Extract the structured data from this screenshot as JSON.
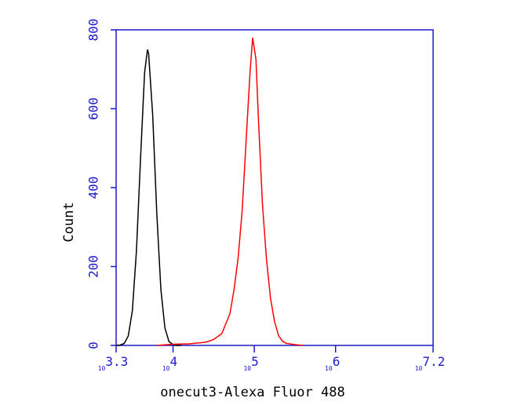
{
  "chart_data": {
    "type": "line",
    "xlabel": "onecut3-Alexa Fluor 488",
    "ylabel": "Count",
    "xscale": "log",
    "xlim": [
      1995.26,
      15848932
    ],
    "ylim": [
      0,
      800
    ],
    "yticks": [
      0,
      200,
      400,
      600,
      800
    ],
    "xticks": [
      {
        "value": 1995.26,
        "label": "10",
        "exponent": "3.3"
      },
      {
        "value": 10000,
        "label": "10",
        "exponent": "4"
      },
      {
        "value": 100000,
        "label": "10",
        "exponent": "5"
      },
      {
        "value": 1000000,
        "label": "10",
        "exponent": "6"
      },
      {
        "value": 15848932,
        "label": "10",
        "exponent": "7.2"
      }
    ],
    "axis_color": "#1a1acc",
    "series": [
      {
        "color": "#000000",
        "x": [
          1995,
          2239,
          2512,
          2818,
          3162,
          3548,
          3981,
          4467,
          4853,
          5012,
          5623,
          6310,
          7079,
          7943,
          8913,
          10000,
          11220,
          12589
        ],
        "values": [
          0,
          1,
          5,
          24,
          88,
          240,
          473,
          692,
          750,
          740,
          584,
          336,
          143,
          44,
          10,
          2,
          0,
          0
        ]
      },
      {
        "color": "#ff0000",
        "x": [
          6310,
          10000,
          15849,
          25119,
          31623,
          39811,
          50119,
          56234,
          63096,
          70795,
          79433,
          89125,
          95499,
          104713,
          112202,
          125893,
          141254,
          158489,
          177828,
          199526,
          223872,
          251189,
          316228,
          398107
        ],
        "values": [
          0,
          3,
          4,
          8,
          15,
          30,
          80,
          140,
          220,
          340,
          520,
          700,
          780,
          726,
          577,
          358,
          219,
          119,
          60,
          24,
          10,
          5,
          2,
          0
        ]
      }
    ]
  }
}
